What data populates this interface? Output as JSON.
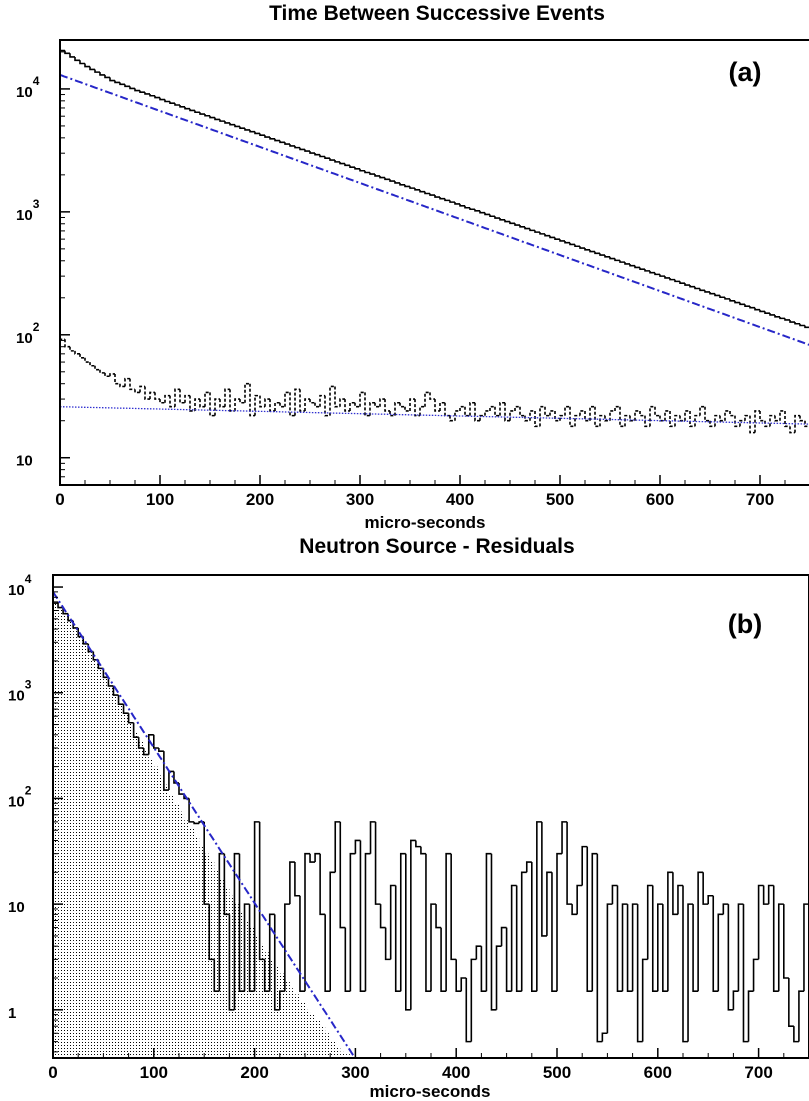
{
  "chart_data": [
    {
      "type": "histogram",
      "panel_label": "(a)",
      "title": "Time Between Successive Events",
      "xlabel": "micro-seconds",
      "ylabel": "",
      "log_y": true,
      "xlim": [
        0,
        750
      ],
      "ylim": [
        6,
        25000
      ],
      "x_ticks": [
        "0",
        "100",
        "200",
        "300",
        "400",
        "500",
        "600",
        "700"
      ],
      "y_ticks": [
        {
          "base": "10",
          "exp": "4",
          "value": 10000
        },
        {
          "base": "10",
          "exp": "3",
          "value": 1000
        },
        {
          "base": "10",
          "exp": "2",
          "value": 100
        },
        {
          "base": "10",
          "exp": "",
          "value": 10
        }
      ],
      "bin_width": 5,
      "series": [
        {
          "style": "solid-step",
          "color": "#000000",
          "values": [
            20500,
            19500,
            18200,
            17100,
            16100,
            15200,
            14400,
            13700,
            13000,
            12400,
            11700,
            11300,
            10900,
            10500,
            10100,
            9700,
            9400,
            9100,
            8800,
            8500,
            8200,
            7900,
            7650,
            7400,
            7150,
            6900,
            6680,
            6460,
            6250,
            6050,
            5850,
            5650,
            5470,
            5290,
            5120,
            4950,
            4790,
            4640,
            4490,
            4340,
            4200,
            4060,
            3930,
            3800,
            3680,
            3560,
            3440,
            3330,
            3220,
            3120,
            3010,
            2920,
            2820,
            2730,
            2640,
            2550,
            2470,
            2390,
            2310,
            2240,
            2160,
            2090,
            2030,
            1960,
            1900,
            1840,
            1780,
            1720,
            1660,
            1610,
            1560,
            1510,
            1460,
            1410,
            1370,
            1320,
            1280,
            1240,
            1200,
            1160,
            1120,
            1080,
            1050,
            1020,
            985,
            952,
            921,
            891,
            862,
            834,
            807,
            781,
            755,
            731,
            707,
            684,
            662,
            640,
            619,
            599,
            580,
            561,
            543,
            525,
            508,
            491,
            475,
            460,
            445,
            431,
            417,
            403,
            390,
            377,
            365,
            353,
            342,
            331,
            320,
            310,
            300,
            290,
            281,
            272,
            263,
            254,
            246,
            238,
            230,
            223,
            216,
            209,
            202,
            196,
            189,
            183,
            177,
            171,
            166,
            160,
            155,
            150,
            145,
            140,
            136,
            132,
            127,
            123,
            119,
            115
          ]
        },
        {
          "style": "dashed-step",
          "color": "#000000",
          "values": [
            92,
            80,
            74,
            70,
            65,
            60,
            56,
            52,
            49,
            46,
            48,
            40,
            38,
            44,
            36,
            34,
            38,
            30,
            34,
            30,
            28,
            32,
            26,
            36,
            28,
            32,
            24,
            30,
            26,
            34,
            22,
            30,
            26,
            36,
            24,
            30,
            28,
            40,
            22,
            32,
            26,
            30,
            24,
            28,
            26,
            34,
            22,
            36,
            24,
            30,
            28,
            26,
            32,
            22,
            38,
            26,
            30,
            24,
            28,
            26,
            34,
            22,
            28,
            26,
            30,
            24,
            22,
            28,
            26,
            24,
            30,
            22,
            26,
            34,
            30,
            24,
            28,
            22,
            20,
            24,
            26,
            22,
            28,
            20,
            22,
            24,
            26,
            22,
            28,
            20,
            24,
            26,
            22,
            20,
            24,
            18,
            26,
            22,
            24,
            20,
            22,
            26,
            18,
            22,
            24,
            20,
            26,
            18,
            22,
            20,
            24,
            26,
            18,
            22,
            20,
            24,
            22,
            18,
            26,
            22,
            20,
            24,
            18,
            22,
            20,
            24,
            18,
            22,
            26,
            20,
            18,
            22,
            20,
            24,
            22,
            18,
            20,
            22,
            16,
            24,
            20,
            18,
            22,
            20,
            24,
            18,
            16,
            22,
            20,
            18
          ]
        }
      ],
      "fits": [
        {
          "style": "dash-dot",
          "color": "#2727c8",
          "type": "exponential",
          "amplitude": 13000,
          "tau": 148.2
        },
        {
          "style": "dotted",
          "color": "#3030d0",
          "type": "exponential",
          "amplitude": 26,
          "tau": 2300
        }
      ]
    },
    {
      "type": "histogram",
      "panel_label": "(b)",
      "title": "Neutron Source - Residuals",
      "xlabel": "micro-seconds",
      "ylabel": "",
      "log_y": true,
      "xlim": [
        0,
        750
      ],
      "ylim": [
        0.35,
        13000
      ],
      "x_ticks": [
        "0",
        "100",
        "200",
        "300",
        "400",
        "500",
        "600",
        "700"
      ],
      "y_ticks": [
        {
          "base": "10",
          "exp": "4",
          "value": 10000
        },
        {
          "base": "10",
          "exp": "3",
          "value": 1000
        },
        {
          "base": "10",
          "exp": "2",
          "value": 100
        },
        {
          "base": "10",
          "exp": "",
          "value": 10
        },
        {
          "base": "1",
          "exp": "",
          "value": 1
        }
      ],
      "bin_width": 5,
      "series": [
        {
          "style": "filled-step",
          "color": "#000000",
          "fill": "dotted-hatch",
          "values": [
            7200,
            6400,
            5600,
            4800,
            4100,
            3400,
            2900,
            2450,
            2050,
            1700,
            1400,
            1160,
            950,
            780,
            640,
            520,
            430,
            350,
            290,
            240,
            200,
            165,
            135,
            110,
            90,
            75,
            62,
            52,
            43,
            36,
            30,
            25,
            21,
            17,
            14,
            12,
            10,
            8.5,
            7,
            6,
            5,
            4.2,
            3.5,
            3,
            2.6,
            2.2,
            1.9,
            1.6,
            1.4,
            1.2,
            1,
            0.9,
            0.8,
            0.7,
            0.6,
            0.5,
            0.45,
            0.4,
            0.38,
            0.36,
            0.35,
            0.35,
            0.35,
            0.35,
            0.35,
            0.35,
            0.35,
            0.35,
            0.35,
            0.35,
            0.35,
            0.35,
            0.35,
            0.35,
            0.35,
            0.35,
            0.35,
            0.35,
            0.35,
            0.35,
            0.35,
            0.35,
            0.35,
            0.35,
            0.35,
            0.35,
            0.35,
            0.35,
            0.35,
            0.35,
            0.35,
            0.35,
            0.35,
            0.35,
            0.35,
            0.35,
            0.35,
            0.35,
            0.35,
            0.35,
            0.35,
            0.35,
            0.35,
            0.35,
            0.35,
            0.35,
            0.35,
            0.35,
            0.35,
            0.35,
            0.35,
            0.35,
            0.35,
            0.35,
            0.35,
            0.35,
            0.35,
            0.35,
            0.35,
            0.35,
            0.35,
            0.35,
            0.35,
            0.35,
            0.35,
            0.35,
            0.35,
            0.35,
            0.35,
            0.35,
            0.35,
            0.35,
            0.35,
            0.35,
            0.35,
            0.35,
            0.35,
            0.35,
            0.35,
            0.35,
            0.35,
            0.35,
            0.35,
            0.35,
            0.35,
            0.35,
            0.35,
            0.35,
            0.35,
            0.35
          ]
        },
        {
          "style": "spiky-step",
          "color": "#000000",
          "values": [
            7200,
            6400,
            5600,
            4800,
            4100,
            3400,
            2900,
            2450,
            2050,
            1700,
            1400,
            1160,
            950,
            780,
            640,
            520,
            380,
            300,
            260,
            400,
            300,
            280,
            120,
            180,
            140,
            110,
            100,
            60,
            58,
            60,
            10,
            3,
            1.5,
            30,
            8,
            1,
            30,
            1.5,
            10,
            1.5,
            60,
            3,
            1.5,
            8,
            1,
            1.5,
            10,
            25,
            12,
            1.5,
            30,
            25,
            30,
            8,
            1.5,
            20,
            60,
            6,
            1.5,
            30,
            40,
            1.5,
            30,
            60,
            10,
            6,
            3,
            15,
            1.5,
            30,
            1,
            40,
            35,
            30,
            1.5,
            10,
            6,
            1.5,
            30,
            3,
            1.5,
            2,
            0.5,
            3,
            4,
            1.5,
            30,
            1,
            4,
            6,
            1.5,
            15,
            1.5,
            20,
            25,
            1.5,
            60,
            5,
            20,
            1.5,
            30,
            60,
            10,
            8,
            15,
            35,
            1.5,
            30,
            0.5,
            0.6,
            10,
            15,
            1.5,
            10,
            1.5,
            10,
            0.5,
            3,
            15,
            1.5,
            10,
            1.5,
            20,
            8,
            15,
            0.5,
            10,
            1.5,
            20,
            10,
            12,
            1.5,
            8,
            10,
            1,
            1.5,
            10,
            0.5,
            1.5,
            3,
            15,
            10,
            15,
            1.5,
            10,
            2,
            0.7,
            0.5,
            1.5,
            10,
            0.5,
            10
          ]
        }
      ],
      "fits": [
        {
          "style": "dash-dot",
          "color": "#2727c8",
          "type": "exponential",
          "amplitude": 9000,
          "tau": 29.5
        }
      ]
    }
  ]
}
